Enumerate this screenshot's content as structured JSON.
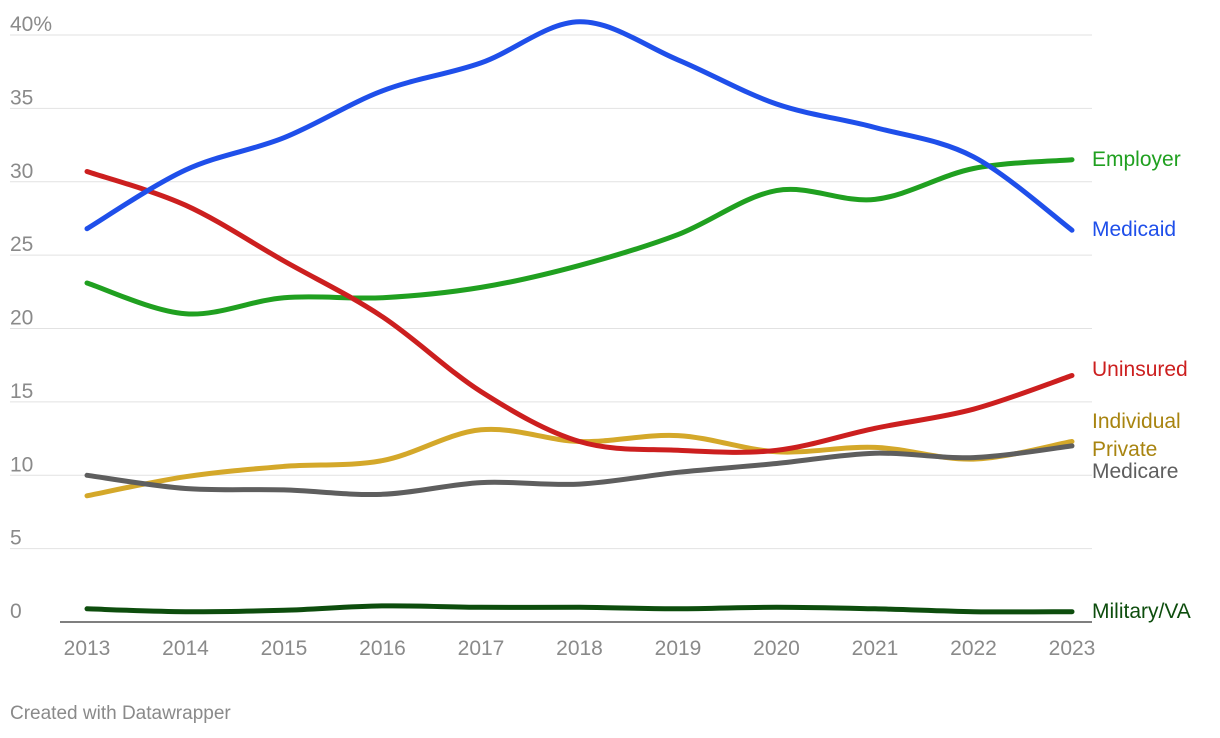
{
  "chart_data": {
    "type": "line",
    "title": "",
    "xlabel": "",
    "ylabel": "",
    "x": [
      2013,
      2014,
      2015,
      2016,
      2017,
      2018,
      2019,
      2020,
      2021,
      2022,
      2023
    ],
    "x_tick_labels": [
      "2013",
      "2014",
      "2015",
      "2016",
      "2017",
      "2018",
      "2019",
      "2020",
      "2021",
      "2022",
      "2023"
    ],
    "ylim": [
      0,
      40
    ],
    "y_ticks": [
      0,
      5,
      10,
      15,
      20,
      25,
      30,
      35,
      40
    ],
    "y_tick_labels": [
      "0",
      "5",
      "10",
      "15",
      "20",
      "25",
      "30",
      "35",
      "40%"
    ],
    "grid": true,
    "legend": "direct labels at right end of lines",
    "series": [
      {
        "name": "Medicaid",
        "label_lines": [
          "Medicaid"
        ],
        "color": "#1f4fea",
        "values": [
          26.8,
          30.8,
          33.0,
          36.2,
          38.1,
          40.9,
          38.3,
          35.3,
          33.7,
          31.7,
          26.7
        ]
      },
      {
        "name": "Employer",
        "label_lines": [
          "Employer"
        ],
        "color": "#20a020",
        "values": [
          23.1,
          21.0,
          22.1,
          22.1,
          22.8,
          24.3,
          26.4,
          29.4,
          28.8,
          30.9,
          31.5
        ]
      },
      {
        "name": "Uninsured",
        "label_lines": [
          "Uninsured"
        ],
        "color": "#cc1f1f",
        "values": [
          30.7,
          28.4,
          24.6,
          20.8,
          15.7,
          12.3,
          11.7,
          11.7,
          13.2,
          14.5,
          16.8
        ]
      },
      {
        "name": "Individual Private",
        "label_lines": [
          "Individual",
          "Private"
        ],
        "color": "#d4a82a",
        "label_color": "#a88410",
        "values": [
          8.6,
          9.9,
          10.6,
          11.0,
          13.1,
          12.3,
          12.7,
          11.6,
          11.9,
          11.1,
          12.3
        ]
      },
      {
        "name": "Medicare",
        "label_lines": [
          "Medicare"
        ],
        "color": "#5e5e5e",
        "values": [
          10.0,
          9.1,
          9.0,
          8.7,
          9.5,
          9.4,
          10.2,
          10.8,
          11.5,
          11.2,
          12.0
        ]
      },
      {
        "name": "Military/VA",
        "label_lines": [
          "Military/VA"
        ],
        "color": "#0d4d0d",
        "values": [
          0.9,
          0.7,
          0.8,
          1.1,
          1.0,
          1.0,
          0.9,
          1.0,
          0.9,
          0.7,
          0.7
        ]
      }
    ]
  },
  "footer": {
    "credit": "Created with Datawrapper"
  }
}
